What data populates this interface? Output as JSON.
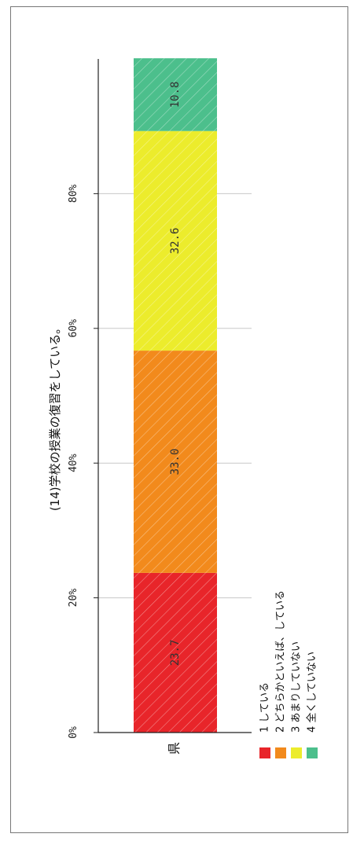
{
  "chart_data": {
    "type": "bar",
    "orientation": "horizontal-stacked",
    "title": "(14)学校の授業の復習をしている。",
    "categories": [
      "県"
    ],
    "series": [
      {
        "name": "1 している",
        "values": [
          23.7
        ],
        "color": "#e8252a"
      },
      {
        "name": "2 どちらかといえば、している",
        "values": [
          33.0
        ],
        "color": "#f28a1c"
      },
      {
        "name": "3 あまりしていない",
        "values": [
          32.6
        ],
        "color": "#ecec2c"
      },
      {
        "name": "4 全くしていない",
        "values": [
          10.8
        ],
        "color": "#4cbf8c"
      }
    ],
    "data_labels": [
      "23.7",
      "33.0",
      "32.6",
      "10.8"
    ],
    "xlim": [
      0,
      100
    ],
    "xticks": [
      "0%",
      "20%",
      "40%",
      "60%",
      "80%"
    ],
    "grid": true,
    "legend_position": "bottom-left"
  }
}
